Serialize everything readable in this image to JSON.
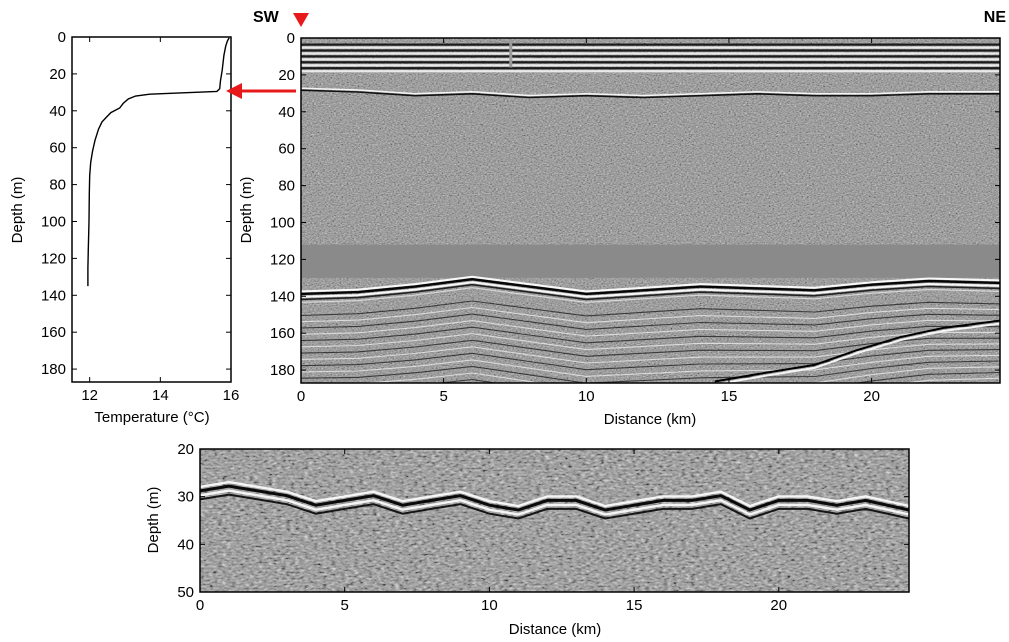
{
  "figure": {
    "marker_color": "#e8191a",
    "arrow_color": "#e8191a",
    "direction_left": "SW",
    "direction_right": "NE"
  },
  "chart_data": [
    {
      "type": "line",
      "panel": "temperature-profile",
      "xlabel": "Temperature (°C)",
      "ylabel": "Depth (m)",
      "xlim": [
        11.5,
        16
      ],
      "ylim": [
        0,
        187
      ],
      "y_inverted": true,
      "x_ticks": [
        12,
        14,
        16
      ],
      "y_ticks": [
        0,
        20,
        40,
        60,
        80,
        100,
        120,
        140,
        160,
        180
      ],
      "series": [
        {
          "points": [
            [
              15.95,
              0.5
            ],
            [
              15.9,
              2
            ],
            [
              15.85,
              5
            ],
            [
              15.8,
              10
            ],
            [
              15.75,
              18
            ],
            [
              15.7,
              24
            ],
            [
              15.68,
              28
            ],
            [
              15.6,
              29.5
            ],
            [
              15.0,
              30
            ],
            [
              14.3,
              30.5
            ],
            [
              13.7,
              31
            ],
            [
              13.3,
              32
            ],
            [
              13.1,
              33.5
            ],
            [
              12.95,
              36
            ],
            [
              12.85,
              38.5
            ],
            [
              12.7,
              40
            ],
            [
              12.6,
              41
            ],
            [
              12.5,
              43
            ],
            [
              12.35,
              46
            ],
            [
              12.25,
              50
            ],
            [
              12.15,
              56
            ],
            [
              12.08,
              62
            ],
            [
              12.03,
              68
            ],
            [
              12.0,
              75
            ],
            [
              11.99,
              85
            ],
            [
              11.98,
              100
            ],
            [
              11.96,
              115
            ],
            [
              11.95,
              125
            ],
            [
              11.95,
              135
            ]
          ]
        }
      ]
    },
    {
      "type": "heatmap",
      "panel": "seismic-section",
      "xlabel": "Distance (km)",
      "ylabel": "Depth (m)",
      "xlim": [
        0,
        24.5
      ],
      "ylim": [
        0,
        187
      ],
      "y_inverted": true,
      "x_ticks": [
        0,
        5,
        10,
        15,
        20
      ],
      "y_ticks": [
        0,
        20,
        40,
        60,
        80,
        100,
        120,
        140,
        160,
        180
      ],
      "muted_zone_m": [
        112,
        130
      ],
      "reflectors": [
        {
          "name": "thermocline",
          "distance_km": [
            0,
            2,
            4,
            6,
            8,
            10,
            12,
            14,
            16,
            18,
            20,
            22,
            24.5
          ],
          "depth_m": [
            28,
            29,
            31,
            30,
            32,
            31,
            32,
            31,
            30,
            31,
            31,
            30,
            30
          ]
        },
        {
          "name": "seafloor",
          "distance_km": [
            0,
            2,
            4,
            6,
            8,
            10,
            12,
            14,
            16,
            18,
            20,
            22,
            24.5
          ],
          "depth_m": [
            139,
            138,
            135,
            131,
            135,
            139,
            137,
            135,
            136,
            137,
            134,
            132,
            133
          ]
        }
      ]
    },
    {
      "type": "heatmap",
      "panel": "seismic-zoom",
      "xlabel": "Distance (km)",
      "ylabel": "Depth (m)",
      "xlim": [
        0,
        24.5
      ],
      "ylim": [
        20,
        50
      ],
      "y_inverted": true,
      "x_ticks": [
        0,
        5,
        10,
        15,
        20
      ],
      "y_ticks": [
        20,
        30,
        40,
        50
      ],
      "reflectors": [
        {
          "name": "thermocline",
          "distance_km": [
            0,
            1,
            2,
            3,
            4,
            5,
            6,
            7,
            8,
            9,
            10,
            11,
            12,
            13,
            14,
            15,
            16,
            17,
            18,
            19,
            20,
            21,
            22,
            23,
            24.5
          ],
          "depth_m": [
            29,
            28,
            29,
            30,
            32,
            31,
            30,
            32,
            31,
            30,
            32,
            33,
            31,
            31,
            33,
            32,
            31,
            31,
            30,
            33,
            31,
            31,
            32,
            31,
            33
          ]
        }
      ]
    }
  ]
}
